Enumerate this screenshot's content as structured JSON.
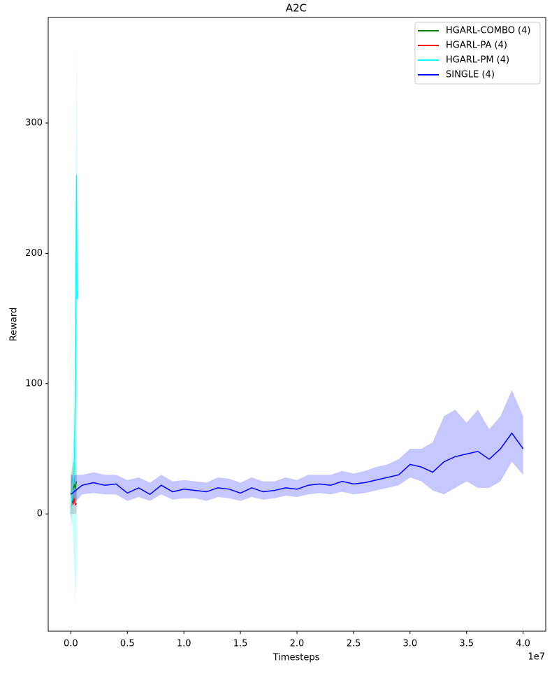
{
  "chart_data": {
    "type": "line",
    "title": "A2C",
    "x_label": "Timesteps",
    "y_label": "Reward",
    "x_offset_label": "1e7",
    "xlim": [
      -0.2,
      4.2
    ],
    "ylim": [
      -90,
      381
    ],
    "xticks": [
      {
        "value": 0,
        "label": "0.0"
      },
      0.5,
      {
        "value": 1,
        "label": "1.0"
      },
      1.5,
      {
        "value": 2,
        "label": "2.0"
      },
      2.5,
      {
        "value": 3,
        "label": "3.0"
      },
      3.5,
      {
        "value": 4,
        "label": "4.0"
      }
    ],
    "yticks": [
      0,
      100,
      200,
      300
    ],
    "legend": "upper-right",
    "series": [
      {
        "name": "HGARL-COMBO (4)",
        "color": "#008000",
        "x": [
          0,
          0.01,
          0.02,
          0.03,
          0.04,
          0.05
        ],
        "values": [
          15,
          18,
          20,
          22,
          20,
          25
        ],
        "lower": [
          5,
          8,
          10,
          10,
          10,
          12
        ],
        "upper": [
          30,
          35,
          40,
          38,
          35,
          40
        ]
      },
      {
        "name": "HGARL-PA (4)",
        "color": "#ff0000",
        "x": [
          0,
          0.01,
          0.02,
          0.03,
          0.04,
          0.05
        ],
        "values": [
          5,
          10,
          8,
          12,
          7,
          8
        ],
        "lower": [
          -5,
          0,
          0,
          0,
          0,
          0
        ],
        "upper": [
          25,
          30,
          25,
          30,
          20,
          20
        ]
      },
      {
        "name": "HGARL-PM (4)",
        "color": "#00ffff",
        "x": [
          0,
          0.01,
          0.02,
          0.03,
          0.04,
          0.05,
          0.055
        ],
        "values": [
          0,
          18,
          25,
          35,
          90,
          260,
          165
        ],
        "lower": [
          -10,
          -5,
          -20,
          -40,
          -68,
          -40,
          -20
        ],
        "upper": [
          20,
          40,
          60,
          100,
          200,
          358,
          300
        ]
      },
      {
        "name": "SINGLE (4)",
        "color": "#0000ff",
        "x": [
          0,
          0.1,
          0.2,
          0.3,
          0.4,
          0.5,
          0.6,
          0.7,
          0.8,
          0.9,
          1.0,
          1.1,
          1.2,
          1.3,
          1.4,
          1.5,
          1.6,
          1.7,
          1.8,
          1.9,
          2.0,
          2.1,
          2.2,
          2.3,
          2.4,
          2.5,
          2.6,
          2.7,
          2.8,
          2.9,
          3.0,
          3.1,
          3.2,
          3.3,
          3.4,
          3.5,
          3.6,
          3.7,
          3.8,
          3.9,
          4.0
        ],
        "values": [
          15,
          22,
          24,
          22,
          23,
          16,
          20,
          15,
          22,
          17,
          19,
          18,
          17,
          20,
          19,
          16,
          20,
          17,
          18,
          20,
          19,
          22,
          23,
          22,
          25,
          23,
          24,
          26,
          28,
          30,
          38,
          36,
          32,
          40,
          44,
          46,
          48,
          42,
          50,
          62,
          50
        ],
        "lower": [
          5,
          15,
          16,
          15,
          15,
          10,
          13,
          10,
          15,
          11,
          12,
          12,
          10,
          13,
          12,
          10,
          13,
          11,
          12,
          14,
          13,
          15,
          16,
          15,
          17,
          15,
          16,
          18,
          20,
          22,
          28,
          25,
          18,
          15,
          20,
          25,
          20,
          20,
          25,
          40,
          30
        ],
        "upper": [
          30,
          30,
          32,
          30,
          30,
          26,
          28,
          24,
          30,
          25,
          26,
          25,
          24,
          28,
          27,
          24,
          28,
          25,
          25,
          28,
          26,
          30,
          30,
          30,
          33,
          31,
          33,
          36,
          38,
          42,
          50,
          50,
          55,
          75,
          80,
          70,
          80,
          65,
          75,
          95,
          75
        ]
      }
    ]
  }
}
